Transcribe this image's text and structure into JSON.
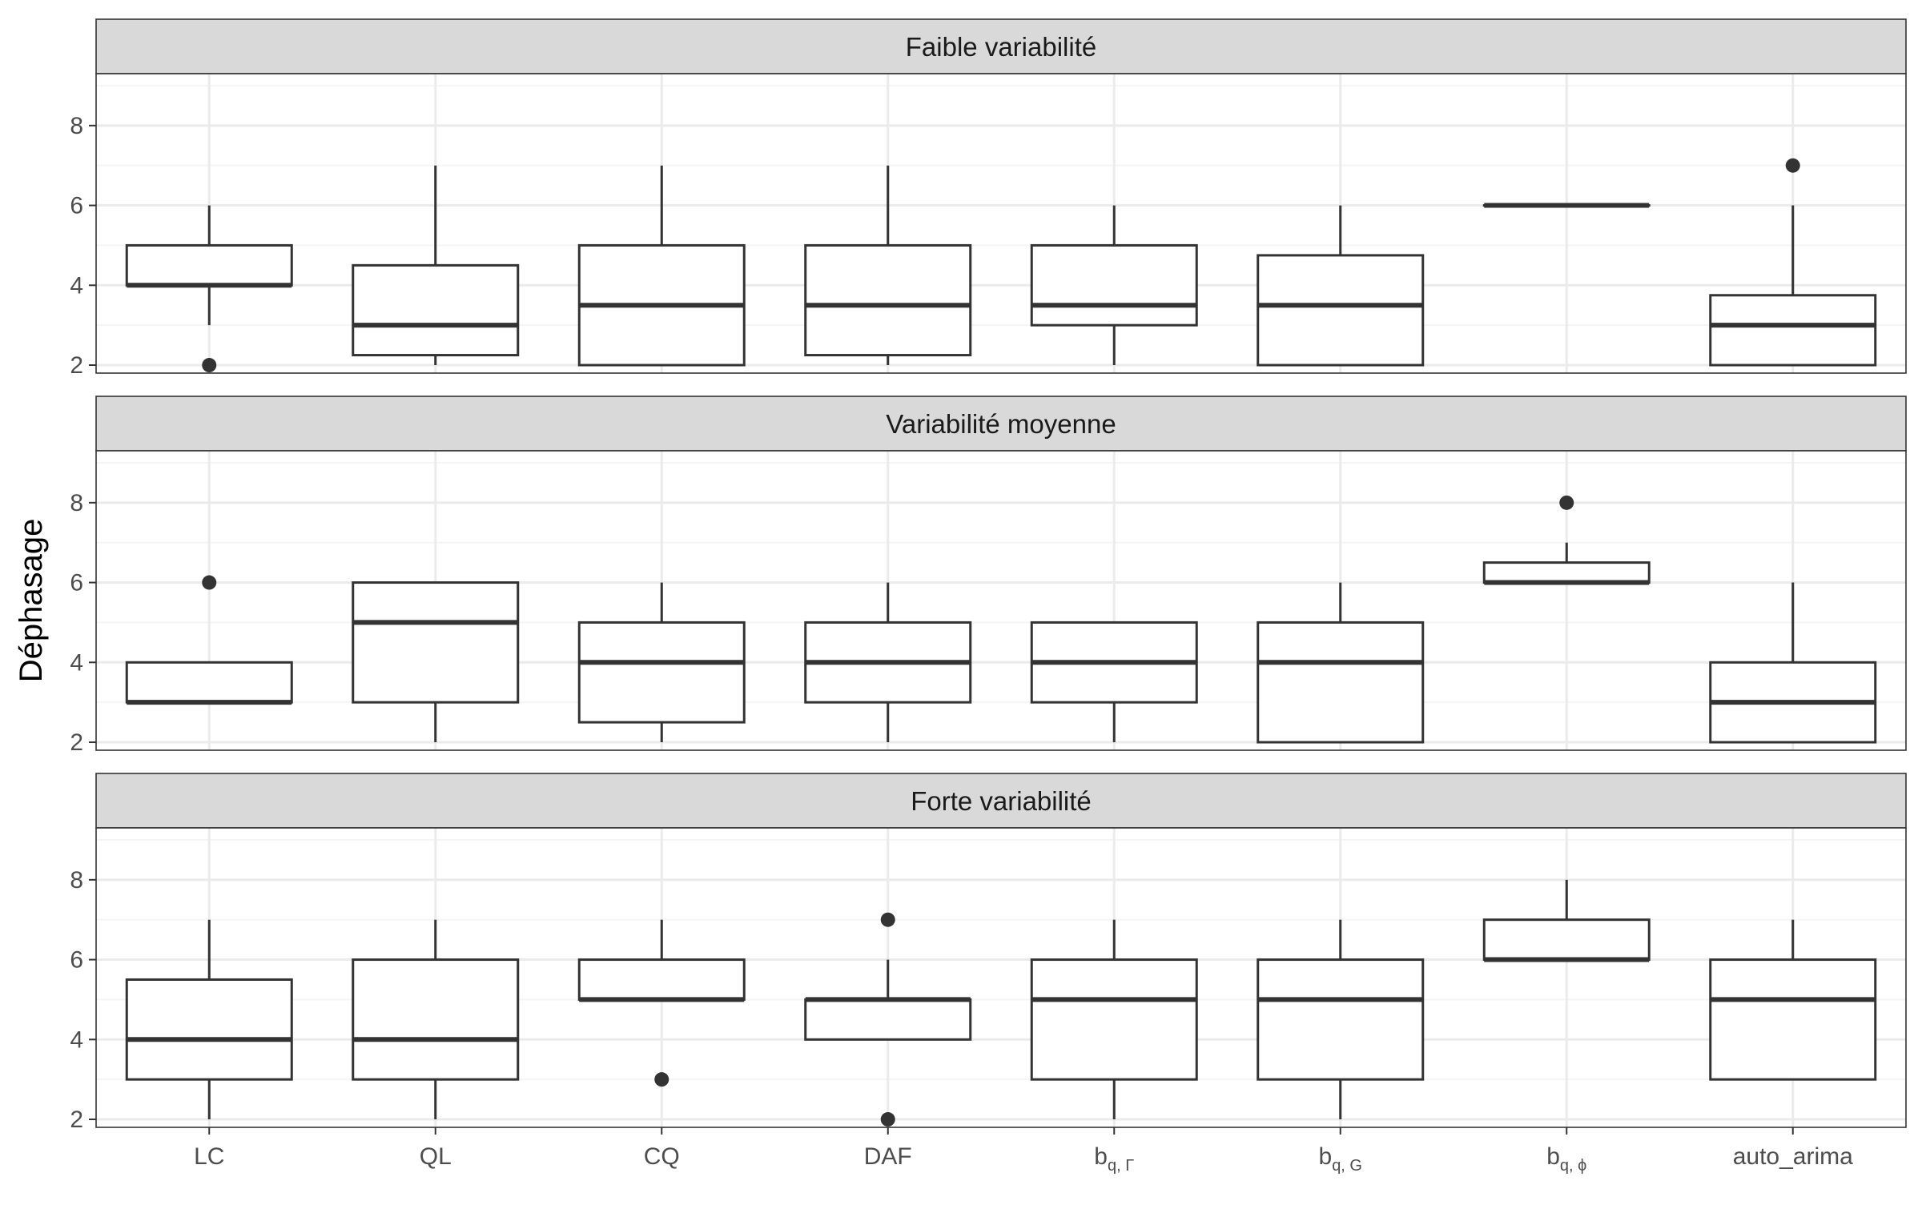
{
  "chart_data": {
    "type": "boxplot",
    "ylabel": "Déphasage",
    "xlabel": "",
    "ylim": [
      1.8,
      9.3
    ],
    "y_ticks": [
      2,
      4,
      6,
      8
    ],
    "grid": true,
    "categories": [
      {
        "base": "LC",
        "sub": ""
      },
      {
        "base": "QL",
        "sub": ""
      },
      {
        "base": "CQ",
        "sub": ""
      },
      {
        "base": "DAF",
        "sub": ""
      },
      {
        "base": "b",
        "sub": "q, Γ"
      },
      {
        "base": "b",
        "sub": "q, G"
      },
      {
        "base": "b",
        "sub": "q, ϕ"
      },
      {
        "base": "auto_arima",
        "sub": ""
      }
    ],
    "panels": [
      {
        "title": "Faible variabilité",
        "boxes": [
          {
            "lower": 3,
            "q1": 4,
            "median": 4,
            "q3": 5,
            "upper": 6,
            "outliers": [
              2
            ]
          },
          {
            "lower": 2,
            "q1": 2.25,
            "median": 3,
            "q3": 4.5,
            "upper": 7,
            "outliers": []
          },
          {
            "lower": 2,
            "q1": 2,
            "median": 3.5,
            "q3": 5,
            "upper": 7,
            "outliers": []
          },
          {
            "lower": 2,
            "q1": 2.25,
            "median": 3.5,
            "q3": 5,
            "upper": 7,
            "outliers": []
          },
          {
            "lower": 2,
            "q1": 3,
            "median": 3.5,
            "q3": 5,
            "upper": 6,
            "outliers": []
          },
          {
            "lower": 2,
            "q1": 2,
            "median": 3.5,
            "q3": 4.75,
            "upper": 6,
            "outliers": []
          },
          {
            "lower": 6,
            "q1": 6,
            "median": 6,
            "q3": 6,
            "upper": 6,
            "outliers": []
          },
          {
            "lower": 2,
            "q1": 2,
            "median": 3,
            "q3": 3.75,
            "upper": 6,
            "outliers": [
              7
            ]
          }
        ]
      },
      {
        "title": "Variabilité moyenne",
        "boxes": [
          {
            "lower": 3,
            "q1": 3,
            "median": 3,
            "q3": 4,
            "upper": 4,
            "outliers": [
              6
            ]
          },
          {
            "lower": 2,
            "q1": 3,
            "median": 5,
            "q3": 6,
            "upper": 6,
            "outliers": []
          },
          {
            "lower": 2,
            "q1": 2.5,
            "median": 4,
            "q3": 5,
            "upper": 6,
            "outliers": []
          },
          {
            "lower": 2,
            "q1": 3,
            "median": 4,
            "q3": 5,
            "upper": 6,
            "outliers": []
          },
          {
            "lower": 2,
            "q1": 3,
            "median": 4,
            "q3": 5,
            "upper": 5,
            "outliers": []
          },
          {
            "lower": 2,
            "q1": 2,
            "median": 4,
            "q3": 5,
            "upper": 6,
            "outliers": []
          },
          {
            "lower": 6,
            "q1": 6,
            "median": 6,
            "q3": 6.5,
            "upper": 7,
            "outliers": [
              8
            ]
          },
          {
            "lower": 2,
            "q1": 2,
            "median": 3,
            "q3": 4,
            "upper": 6,
            "outliers": []
          }
        ]
      },
      {
        "title": "Forte variabilité",
        "boxes": [
          {
            "lower": 2,
            "q1": 3,
            "median": 4,
            "q3": 5.5,
            "upper": 7,
            "outliers": []
          },
          {
            "lower": 2,
            "q1": 3,
            "median": 4,
            "q3": 6,
            "upper": 7,
            "outliers": []
          },
          {
            "lower": 5,
            "q1": 5,
            "median": 5,
            "q3": 6,
            "upper": 7,
            "outliers": [
              3
            ]
          },
          {
            "lower": 4,
            "q1": 4,
            "median": 5,
            "q3": 5,
            "upper": 6,
            "outliers": [
              7,
              2
            ]
          },
          {
            "lower": 2,
            "q1": 3,
            "median": 5,
            "q3": 6,
            "upper": 7,
            "outliers": []
          },
          {
            "lower": 2,
            "q1": 3,
            "median": 5,
            "q3": 6,
            "upper": 7,
            "outliers": []
          },
          {
            "lower": 6,
            "q1": 6,
            "median": 6,
            "q3": 7,
            "upper": 8,
            "outliers": []
          },
          {
            "lower": 3,
            "q1": 3,
            "median": 5,
            "q3": 6,
            "upper": 7,
            "outliers": []
          }
        ]
      }
    ]
  },
  "colors": {
    "strip_fill": "#d9d9d9",
    "border": "#333333",
    "grid_major": "#ebebeb",
    "grid_minor": "#f5f5f5",
    "box_stroke": "#333333",
    "outlier": "#333333"
  }
}
